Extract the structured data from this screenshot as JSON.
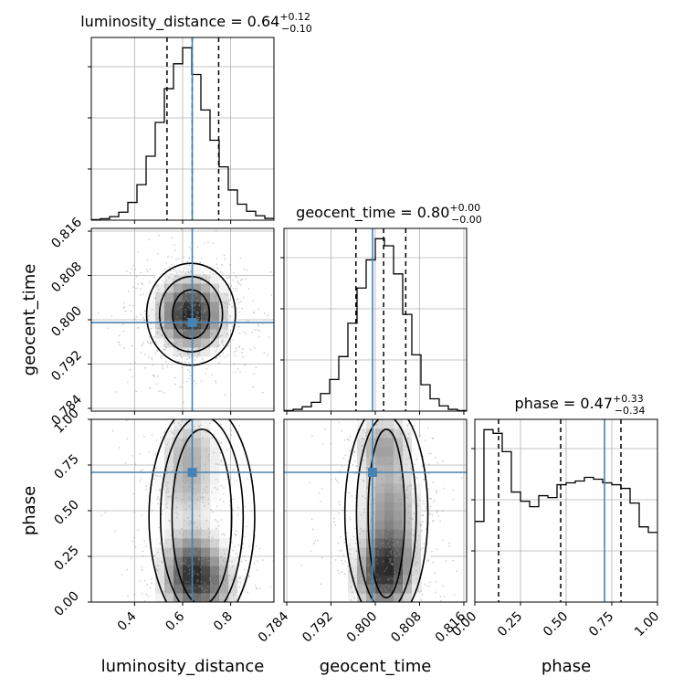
{
  "chart_data": {
    "type": "corner",
    "parameters": [
      "luminosity_distance",
      "geocent_time",
      "phase"
    ],
    "axis_labels": {
      "luminosity_distance": "luminosity_distance",
      "geocent_time": "geocent_time",
      "phase": "phase"
    },
    "ranges": {
      "luminosity_distance": [
        0.22,
        0.98
      ],
      "geocent_time": [
        0.7835,
        0.8165
      ],
      "phase": [
        0.0,
        1.0
      ]
    },
    "ticks": {
      "luminosity_distance": [
        0.4,
        0.6,
        0.8
      ],
      "geocent_time": [
        0.784,
        0.792,
        0.8,
        0.808,
        0.816
      ],
      "phase": [
        0.0,
        0.25,
        0.5,
        0.75,
        1.0
      ]
    },
    "tick_labels": {
      "luminosity_distance": [
        "0.4",
        "0.6",
        "0.8"
      ],
      "geocent_time": [
        "0.784",
        "0.792",
        "0.800",
        "0.808",
        "0.816"
      ],
      "phase": [
        "0.00",
        "0.25",
        "0.50",
        "0.75",
        "1.00"
      ]
    },
    "titles": {
      "luminosity_distance": {
        "lead": "luminosity_distance = 0.64",
        "sup": "+0.12",
        "sub": "−0.10"
      },
      "geocent_time": {
        "lead": "geocent_time = 0.80",
        "sup": "+0.00",
        "sub": "−0.00"
      },
      "phase": {
        "lead": "phase = 0.47",
        "sup": "+0.33",
        "sub": "−0.34"
      }
    },
    "truth": {
      "luminosity_distance": 0.64,
      "geocent_time": 0.7995,
      "phase": 0.71
    },
    "quantiles": {
      "luminosity_distance": [
        0.535,
        0.64,
        0.75
      ],
      "geocent_time": [
        0.7965,
        0.8015,
        0.8055
      ],
      "phase": [
        0.13,
        0.47,
        0.8
      ]
    },
    "histograms": {
      "luminosity_distance": {
        "edges": [
          0.22,
          0.258,
          0.296,
          0.334,
          0.372,
          0.41,
          0.448,
          0.486,
          0.524,
          0.562,
          0.6,
          0.638,
          0.676,
          0.714,
          0.752,
          0.79,
          0.828,
          0.866,
          0.904,
          0.942,
          0.98
        ],
        "counts": [
          0.003,
          0.008,
          0.02,
          0.045,
          0.1,
          0.2,
          0.36,
          0.55,
          0.74,
          0.88,
          0.97,
          0.82,
          0.62,
          0.45,
          0.3,
          0.17,
          0.09,
          0.05,
          0.025,
          0.01
        ]
      },
      "geocent_time": {
        "edges": [
          0.7835,
          0.78515,
          0.7868,
          0.78845,
          0.7901,
          0.79175,
          0.7934,
          0.79505,
          0.7967,
          0.79835,
          0.8,
          0.80165,
          0.8033,
          0.80495,
          0.8066,
          0.80825,
          0.8099,
          0.81155,
          0.8132,
          0.81485,
          0.8165
        ],
        "counts": [
          0.003,
          0.01,
          0.025,
          0.05,
          0.1,
          0.18,
          0.31,
          0.5,
          0.7,
          0.86,
          0.98,
          0.94,
          0.78,
          0.55,
          0.32,
          0.15,
          0.07,
          0.03,
          0.01,
          0.003
        ]
      },
      "phase": {
        "edges": [
          0.0,
          0.05,
          0.1,
          0.15,
          0.2,
          0.25,
          0.3,
          0.35,
          0.4,
          0.45,
          0.5,
          0.55,
          0.6,
          0.65,
          0.7,
          0.75,
          0.8,
          0.85,
          0.9,
          0.95,
          1.0
        ],
        "counts": [
          0.44,
          0.94,
          0.92,
          0.82,
          0.6,
          0.55,
          0.52,
          0.58,
          0.57,
          0.64,
          0.65,
          0.66,
          0.68,
          0.67,
          0.65,
          0.64,
          0.62,
          0.54,
          0.41,
          0.38
        ]
      }
    },
    "joint": {
      "geocent_time_vs_luminosity_distance": {
        "x": "luminosity_distance",
        "y": "geocent_time",
        "peaks": [
          {
            "x": 0.63,
            "y": 0.8022,
            "weight": 1.0
          },
          {
            "x": 0.64,
            "y": 0.7998,
            "weight": 0.8
          }
        ],
        "spread": {
          "x": 0.09,
          "y": 0.004
        }
      },
      "phase_vs_luminosity_distance": {
        "x": "luminosity_distance",
        "y": "phase",
        "peaks": [
          {
            "x": 0.63,
            "y": 0.1,
            "weight": 1.0
          },
          {
            "x": 0.64,
            "y": 0.26,
            "weight": 0.75
          },
          {
            "x": 0.62,
            "y": 0.62,
            "weight": 0.55
          },
          {
            "x": 0.63,
            "y": 0.85,
            "weight": 0.6
          },
          {
            "x": 0.74,
            "y": 0.08,
            "weight": 0.5
          }
        ],
        "spread": {
          "x": 0.08,
          "y": 0.12
        }
      },
      "phase_vs_geocent_time": {
        "x": "geocent_time",
        "y": "phase",
        "peaks": [
          {
            "x": 0.8015,
            "y": 0.12,
            "weight": 1.0
          },
          {
            "x": 0.8025,
            "y": 0.3,
            "weight": 0.75
          },
          {
            "x": 0.8025,
            "y": 0.55,
            "weight": 0.6
          },
          {
            "x": 0.8015,
            "y": 0.85,
            "weight": 0.65
          }
        ],
        "spread": {
          "x": 0.0035,
          "y": 0.12
        }
      }
    },
    "colors": {
      "truth": "#4682b4",
      "hist": "#000000",
      "quantile": "#000000",
      "grid": "#b0b0b0",
      "scatter": "#9a9a9a"
    }
  }
}
